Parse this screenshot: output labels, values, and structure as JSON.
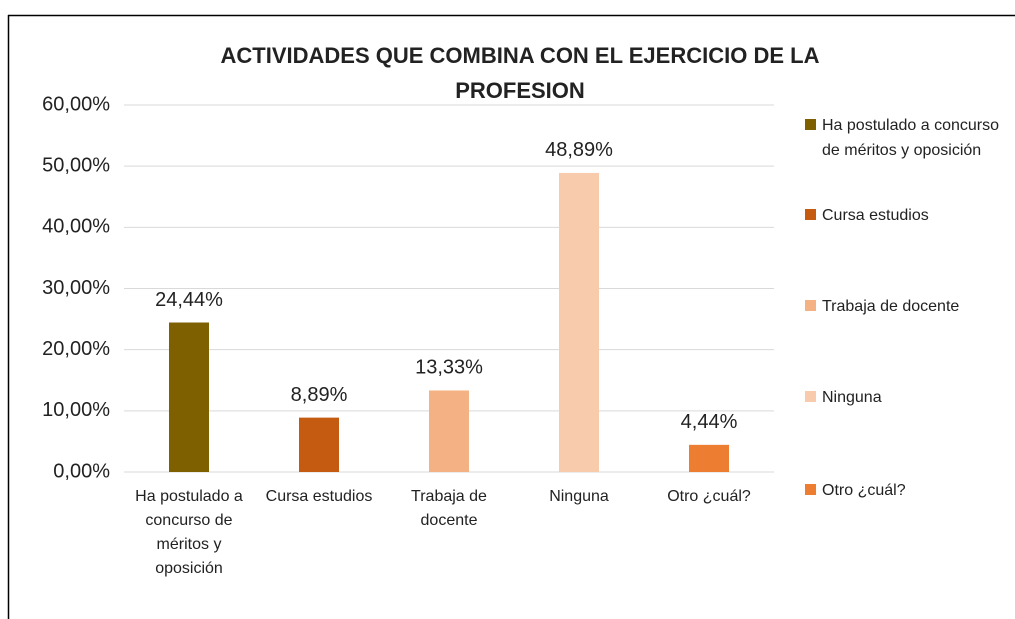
{
  "chart_data": {
    "type": "bar",
    "title": "ACTIVIDADES QUE COMBINA CON EL EJERCICIO DE LA PROFESION",
    "categories": [
      "Ha postulado a concurso de méritos y oposición",
      "Cursa estudios",
      "Trabaja de docente",
      "Ninguna",
      "Otro ¿cuál?"
    ],
    "values": [
      24.44,
      8.89,
      13.33,
      48.89,
      4.44
    ],
    "value_labels": [
      "24,44%",
      "8,89%",
      "13,33%",
      "48,89%",
      "4,44%"
    ],
    "colors": [
      "#7f6000",
      "#c55a11",
      "#f4b183",
      "#f8cbad",
      "#ed7d31"
    ],
    "ylim": [
      0,
      60
    ],
    "yticks": [
      {
        "value": 0,
        "label": "0,00%"
      },
      {
        "value": 10,
        "label": "10,00%"
      },
      {
        "value": 20,
        "label": "20,00%"
      },
      {
        "value": 30,
        "label": "30,00%"
      },
      {
        "value": 40,
        "label": "40,00%"
      },
      {
        "value": 50,
        "label": "50,00%"
      },
      {
        "value": 60,
        "label": "60,00%"
      }
    ],
    "grid": true,
    "legend": "right"
  }
}
